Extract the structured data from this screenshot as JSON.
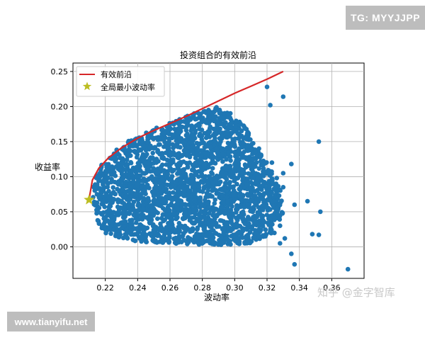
{
  "watermarks": {
    "top_right": "TG: MYYJJPP",
    "bottom_left": "www.tianyifu.net",
    "zhihu": "知乎 @金字智库"
  },
  "colors": {
    "scatter": "#1f77b4",
    "frontier": "#d62728",
    "min_vol_star": "#bcbd22"
  },
  "chart_data": {
    "type": "scatter",
    "title": "投资组合的有效前沿",
    "xlabel": "波动率",
    "ylabel": "收益率",
    "xlim": [
      0.2,
      0.38
    ],
    "ylim": [
      -0.045,
      0.262
    ],
    "x_ticks": [
      "0.22",
      "0.24",
      "0.26",
      "0.28",
      "0.30",
      "0.32",
      "0.34",
      "0.36"
    ],
    "y_ticks": [
      "0.00",
      "0.05",
      "0.10",
      "0.15",
      "0.20",
      "0.25"
    ],
    "grid": true,
    "legend_placement": "top-left",
    "series": [
      {
        "name": "有效前沿",
        "kind": "line",
        "points": [
          [
            0.21,
            0.068
          ],
          [
            0.212,
            0.095
          ],
          [
            0.216,
            0.112
          ],
          [
            0.222,
            0.127
          ],
          [
            0.23,
            0.141
          ],
          [
            0.24,
            0.155
          ],
          [
            0.25,
            0.166
          ],
          [
            0.26,
            0.176
          ],
          [
            0.27,
            0.186
          ],
          [
            0.28,
            0.197
          ],
          [
            0.29,
            0.208
          ],
          [
            0.3,
            0.219
          ],
          [
            0.31,
            0.229
          ],
          [
            0.32,
            0.239
          ],
          [
            0.33,
            0.25
          ]
        ]
      },
      {
        "name": "全局最小波动率",
        "kind": "star",
        "points": [
          [
            0.21,
            0.067
          ]
        ]
      },
      {
        "kind": "scatter",
        "region": [
          [
            0.216,
            0.03
          ],
          [
            0.222,
            0.015
          ],
          [
            0.235,
            0.008
          ],
          [
            0.26,
            0.005
          ],
          [
            0.29,
            0.002
          ],
          [
            0.31,
            0.005
          ],
          [
            0.325,
            0.02
          ],
          [
            0.33,
            0.05
          ],
          [
            0.328,
            0.085
          ],
          [
            0.32,
            0.12
          ],
          [
            0.31,
            0.16
          ],
          [
            0.3,
            0.19
          ],
          [
            0.29,
            0.2
          ],
          [
            0.27,
            0.187
          ],
          [
            0.25,
            0.168
          ],
          [
            0.235,
            0.152
          ],
          [
            0.225,
            0.135
          ],
          [
            0.218,
            0.118
          ],
          [
            0.214,
            0.1
          ],
          [
            0.212,
            0.08
          ],
          [
            0.213,
            0.055
          ]
        ],
        "outliers": [
          [
            0.37,
            -0.032
          ],
          [
            0.345,
            0.065
          ],
          [
            0.353,
            0.05
          ],
          [
            0.352,
            0.15
          ],
          [
            0.348,
            0.018
          ],
          [
            0.352,
            0.017
          ],
          [
            0.335,
            0.118
          ],
          [
            0.337,
            0.06
          ],
          [
            0.323,
            0.12
          ],
          [
            0.326,
            0.098
          ],
          [
            0.33,
            0.105
          ],
          [
            0.328,
            0.03
          ],
          [
            0.331,
            0.012
          ],
          [
            0.335,
            -0.01
          ],
          [
            0.337,
            -0.025
          ],
          [
            0.32,
            0.228
          ],
          [
            0.322,
            0.202
          ],
          [
            0.33,
            0.214
          ],
          [
            0.315,
            0.14
          ],
          [
            0.318,
            0.075
          ],
          [
            0.31,
            0.092
          ],
          [
            0.305,
            0.13
          ],
          [
            0.306,
            0.105
          ],
          [
            0.308,
            0.06
          ],
          [
            0.3,
            0.145
          ],
          [
            0.325,
            0.04
          ],
          [
            0.319,
            0.015
          ],
          [
            0.312,
            0.035
          ],
          [
            0.303,
            0.178
          ],
          [
            0.298,
            0.176
          ],
          [
            0.33,
            0.085
          ],
          [
            0.328,
            0.005
          ]
        ]
      }
    ]
  }
}
